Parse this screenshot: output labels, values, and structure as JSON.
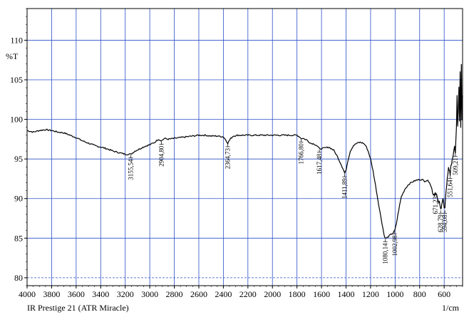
{
  "chart_data": {
    "type": "line",
    "title": "",
    "ylabel": "%T",
    "xunit": "1/cm",
    "instrument": "IR Prestige 21 (ATR Miracle)",
    "xlim": [
      4000,
      450
    ],
    "ylim": [
      79,
      114
    ],
    "x_ticks": [
      4000,
      3800,
      3600,
      3400,
      3200,
      3000,
      2800,
      2600,
      2400,
      2200,
      2000,
      1800,
      1600,
      1400,
      1200,
      1000,
      800,
      600
    ],
    "y_ticks": [
      80,
      85,
      90,
      95,
      100,
      105,
      110
    ],
    "grid": true,
    "line_color": "#000000",
    "grid_color": "#2a50c8",
    "series": [
      {
        "points": [
          [
            4000,
            98.6
          ],
          [
            3950,
            98.4
          ],
          [
            3900,
            98.6
          ],
          [
            3850,
            98.7
          ],
          [
            3800,
            98.6
          ],
          [
            3750,
            98.4
          ],
          [
            3700,
            98.3
          ],
          [
            3650,
            98.0
          ],
          [
            3600,
            97.7
          ],
          [
            3550,
            97.3
          ],
          [
            3500,
            97.0
          ],
          [
            3450,
            96.7
          ],
          [
            3400,
            96.5
          ],
          [
            3350,
            96.3
          ],
          [
            3300,
            96.0
          ],
          [
            3250,
            95.8
          ],
          [
            3200,
            95.6
          ],
          [
            3155,
            95.6
          ],
          [
            3120,
            96.0
          ],
          [
            3080,
            96.3
          ],
          [
            3040,
            96.6
          ],
          [
            3000,
            96.8
          ],
          [
            2960,
            97.1
          ],
          [
            2930,
            97.5
          ],
          [
            2904,
            97.3
          ],
          [
            2880,
            97.6
          ],
          [
            2850,
            97.5
          ],
          [
            2800,
            97.6
          ],
          [
            2750,
            97.7
          ],
          [
            2700,
            97.8
          ],
          [
            2650,
            97.9
          ],
          [
            2600,
            98.0
          ],
          [
            2550,
            98.0
          ],
          [
            2500,
            97.9
          ],
          [
            2450,
            97.9
          ],
          [
            2400,
            97.8
          ],
          [
            2380,
            97.4
          ],
          [
            2364,
            97.0
          ],
          [
            2345,
            97.5
          ],
          [
            2320,
            97.9
          ],
          [
            2280,
            98.0
          ],
          [
            2200,
            98.0
          ],
          [
            2100,
            98.0
          ],
          [
            2000,
            98.0
          ],
          [
            1900,
            98.0
          ],
          [
            1850,
            98.0
          ],
          [
            1800,
            98.0
          ],
          [
            1780,
            97.8
          ],
          [
            1766,
            97.6
          ],
          [
            1750,
            97.6
          ],
          [
            1720,
            97.4
          ],
          [
            1690,
            97.0
          ],
          [
            1660,
            96.9
          ],
          [
            1640,
            96.7
          ],
          [
            1617,
            96.3
          ],
          [
            1600,
            96.3
          ],
          [
            1570,
            96.4
          ],
          [
            1540,
            96.5
          ],
          [
            1500,
            96.1
          ],
          [
            1470,
            95.3
          ],
          [
            1440,
            94.3
          ],
          [
            1420,
            93.6
          ],
          [
            1411,
            93.2
          ],
          [
            1400,
            93.6
          ],
          [
            1385,
            94.8
          ],
          [
            1365,
            96.0
          ],
          [
            1340,
            96.7
          ],
          [
            1310,
            97.0
          ],
          [
            1285,
            97.1
          ],
          [
            1260,
            97.0
          ],
          [
            1240,
            96.7
          ],
          [
            1220,
            96.0
          ],
          [
            1200,
            95.0
          ],
          [
            1180,
            93.5
          ],
          [
            1160,
            91.7
          ],
          [
            1140,
            89.8
          ],
          [
            1120,
            88.0
          ],
          [
            1100,
            86.3
          ],
          [
            1090,
            85.4
          ],
          [
            1080,
            85.0
          ],
          [
            1070,
            85.0
          ],
          [
            1055,
            85.2
          ],
          [
            1040,
            85.4
          ],
          [
            1020,
            85.6
          ],
          [
            1002,
            86.0
          ],
          [
            990,
            86.8
          ],
          [
            970,
            88.6
          ],
          [
            950,
            90.2
          ],
          [
            920,
            91.2
          ],
          [
            890,
            91.8
          ],
          [
            860,
            92.1
          ],
          [
            830,
            92.3
          ],
          [
            800,
            92.4
          ],
          [
            780,
            92.4
          ],
          [
            760,
            92.2
          ],
          [
            740,
            92.3
          ],
          [
            720,
            92.1
          ],
          [
            700,
            91.2
          ],
          [
            690,
            90.6
          ],
          [
            680,
            90.5
          ],
          [
            671,
            90.9
          ],
          [
            660,
            90.3
          ],
          [
            650,
            89.6
          ],
          [
            640,
            89.5
          ],
          [
            628,
            88.6
          ],
          [
            620,
            89.4
          ],
          [
            610,
            90.0
          ],
          [
            600,
            88.8
          ],
          [
            594,
            88.6
          ],
          [
            585,
            91.0
          ],
          [
            575,
            92.5
          ],
          [
            565,
            93.8
          ],
          [
            555,
            93.5
          ],
          [
            551,
            93.0
          ],
          [
            545,
            94.0
          ],
          [
            535,
            95.0
          ],
          [
            525,
            95.5
          ],
          [
            515,
            96.5
          ],
          [
            509,
            95.8
          ],
          [
            500,
            99.0
          ],
          [
            495,
            103.0
          ],
          [
            490,
            99.0
          ],
          [
            485,
            101.0
          ],
          [
            480,
            104.0
          ],
          [
            475,
            100.0
          ],
          [
            470,
            105.8
          ],
          [
            465,
            99.0
          ],
          [
            460,
            107.0
          ],
          [
            455,
            100.0
          ],
          [
            450,
            103.0
          ]
        ]
      }
    ],
    "peak_labels": [
      {
        "x": 3155.54,
        "y": 95.6,
        "text": "3155,54"
      },
      {
        "x": 2904.8,
        "y": 97.3,
        "text": "2904,80"
      },
      {
        "x": 2364.73,
        "y": 97.0,
        "text": "2364,73"
      },
      {
        "x": 1766.8,
        "y": 97.6,
        "text": "1766,80"
      },
      {
        "x": 1617.48,
        "y": 96.3,
        "text": "1617,48"
      },
      {
        "x": 1411.89,
        "y": 93.2,
        "text": "1411,89"
      },
      {
        "x": 1080.14,
        "y": 85.0,
        "text": "1080,14"
      },
      {
        "x": 1002.98,
        "y": 86.0,
        "text": "1002,98"
      },
      {
        "x": 671.23,
        "y": 90.9,
        "text": "671,23"
      },
      {
        "x": 628.79,
        "y": 88.6,
        "text": "628,79"
      },
      {
        "x": 594.08,
        "y": 88.6,
        "text": "594,08"
      },
      {
        "x": 551.64,
        "y": 93.0,
        "text": "551,64"
      },
      {
        "x": 509.21,
        "y": 95.8,
        "text": "509,21"
      }
    ]
  }
}
